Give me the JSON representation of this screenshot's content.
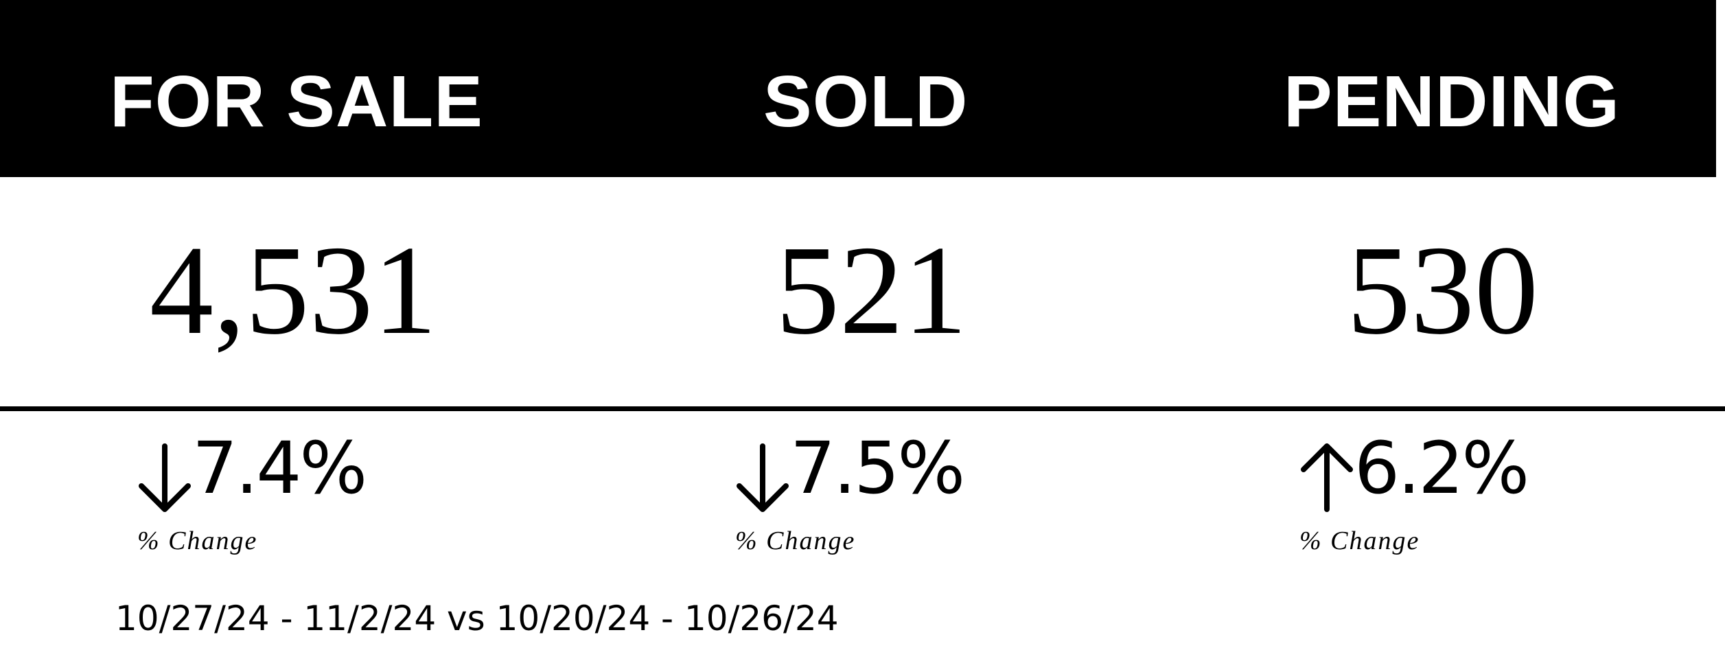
{
  "columns": [
    {
      "title": "FOR SALE",
      "value": "4,531",
      "direction": "down",
      "direction_icon": "arrow-down-icon",
      "change": "7.4%",
      "change_label": "% Change"
    },
    {
      "title": "SOLD",
      "value": "521",
      "direction": "down",
      "direction_icon": "arrow-down-icon",
      "change": "7.5%",
      "change_label": "% Change"
    },
    {
      "title": "PENDING",
      "value": "530",
      "direction": "up",
      "direction_icon": "arrow-up-icon",
      "change": "6.2%",
      "change_label": "% Change"
    }
  ],
  "date_range": "10/27/24 - 11/2/24 vs 10/20/24 - 10/26/24",
  "colors": {
    "band": "#000000",
    "header_text": "#ffffff",
    "text": "#000000"
  }
}
